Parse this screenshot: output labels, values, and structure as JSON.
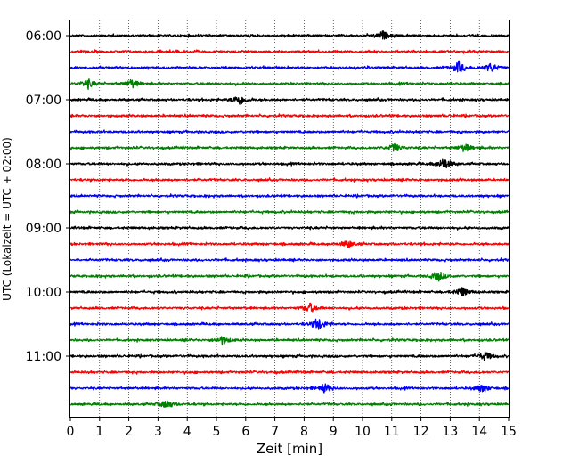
{
  "chart_data": {
    "type": "line",
    "chart_kind": "helicorder",
    "xlabel": "Zeit  [min]",
    "ylabel": "UTC (Lokalzeit = UTC + 02:00)",
    "xlim": [
      0,
      15
    ],
    "x_ticks": [
      "0",
      "1",
      "2",
      "3",
      "4",
      "5",
      "6",
      "7",
      "8",
      "9",
      "10",
      "11",
      "12",
      "13",
      "14",
      "15"
    ],
    "y_ticks": [
      "06:00",
      "07:00",
      "08:00",
      "09:00",
      "10:00",
      "11:00"
    ],
    "grid": "vertical dotted lines at every minute",
    "trace_colors": [
      "#000000",
      "#ff0000",
      "#0000ff",
      "#008000"
    ],
    "traces": [
      {
        "start": "06:00",
        "color": "#000000",
        "events": [
          {
            "min": 10.7,
            "amp": 1.5
          }
        ]
      },
      {
        "start": "06:15",
        "color": "#ff0000",
        "events": []
      },
      {
        "start": "06:30",
        "color": "#0000ff",
        "events": [
          {
            "min": 13.3,
            "amp": 2.2
          },
          {
            "min": 14.4,
            "amp": 1.8
          }
        ]
      },
      {
        "start": "06:45",
        "color": "#008000",
        "events": [
          {
            "min": 0.6,
            "amp": 1.7
          },
          {
            "min": 2.1,
            "amp": 1.6
          }
        ]
      },
      {
        "start": "07:00",
        "color": "#000000",
        "events": [
          {
            "min": 5.8,
            "amp": 2.0
          }
        ]
      },
      {
        "start": "07:15",
        "color": "#ff0000",
        "events": []
      },
      {
        "start": "07:30",
        "color": "#0000ff",
        "events": []
      },
      {
        "start": "07:45",
        "color": "#008000",
        "events": [
          {
            "min": 11.1,
            "amp": 1.6
          },
          {
            "min": 13.5,
            "amp": 1.5
          }
        ]
      },
      {
        "start": "08:00",
        "color": "#000000",
        "events": [
          {
            "min": 12.8,
            "amp": 2.2
          }
        ]
      },
      {
        "start": "08:15",
        "color": "#ff0000",
        "events": []
      },
      {
        "start": "08:30",
        "color": "#0000ff",
        "events": []
      },
      {
        "start": "08:45",
        "color": "#008000",
        "events": []
      },
      {
        "start": "09:00",
        "color": "#000000",
        "events": []
      },
      {
        "start": "09:15",
        "color": "#ff0000",
        "events": [
          {
            "min": 9.5,
            "amp": 1.4
          }
        ]
      },
      {
        "start": "09:30",
        "color": "#0000ff",
        "events": []
      },
      {
        "start": "09:45",
        "color": "#008000",
        "events": [
          {
            "min": 12.6,
            "amp": 1.6
          }
        ]
      },
      {
        "start": "10:00",
        "color": "#000000",
        "events": [
          {
            "min": 13.4,
            "amp": 1.8
          }
        ]
      },
      {
        "start": "10:15",
        "color": "#ff0000",
        "events": [
          {
            "min": 8.2,
            "amp": 1.8
          }
        ]
      },
      {
        "start": "10:30",
        "color": "#0000ff",
        "events": [
          {
            "min": 8.5,
            "amp": 2.2
          }
        ]
      },
      {
        "start": "10:45",
        "color": "#008000",
        "events": [
          {
            "min": 5.2,
            "amp": 1.5
          }
        ]
      },
      {
        "start": "11:00",
        "color": "#000000",
        "events": [
          {
            "min": 14.2,
            "amp": 1.6
          }
        ]
      },
      {
        "start": "11:15",
        "color": "#ff0000",
        "events": []
      },
      {
        "start": "11:30",
        "color": "#0000ff",
        "events": [
          {
            "min": 8.7,
            "amp": 1.6
          },
          {
            "min": 14.1,
            "amp": 1.4
          }
        ]
      },
      {
        "start": "11:45",
        "color": "#008000",
        "events": [
          {
            "min": 3.3,
            "amp": 1.6
          }
        ]
      }
    ]
  }
}
